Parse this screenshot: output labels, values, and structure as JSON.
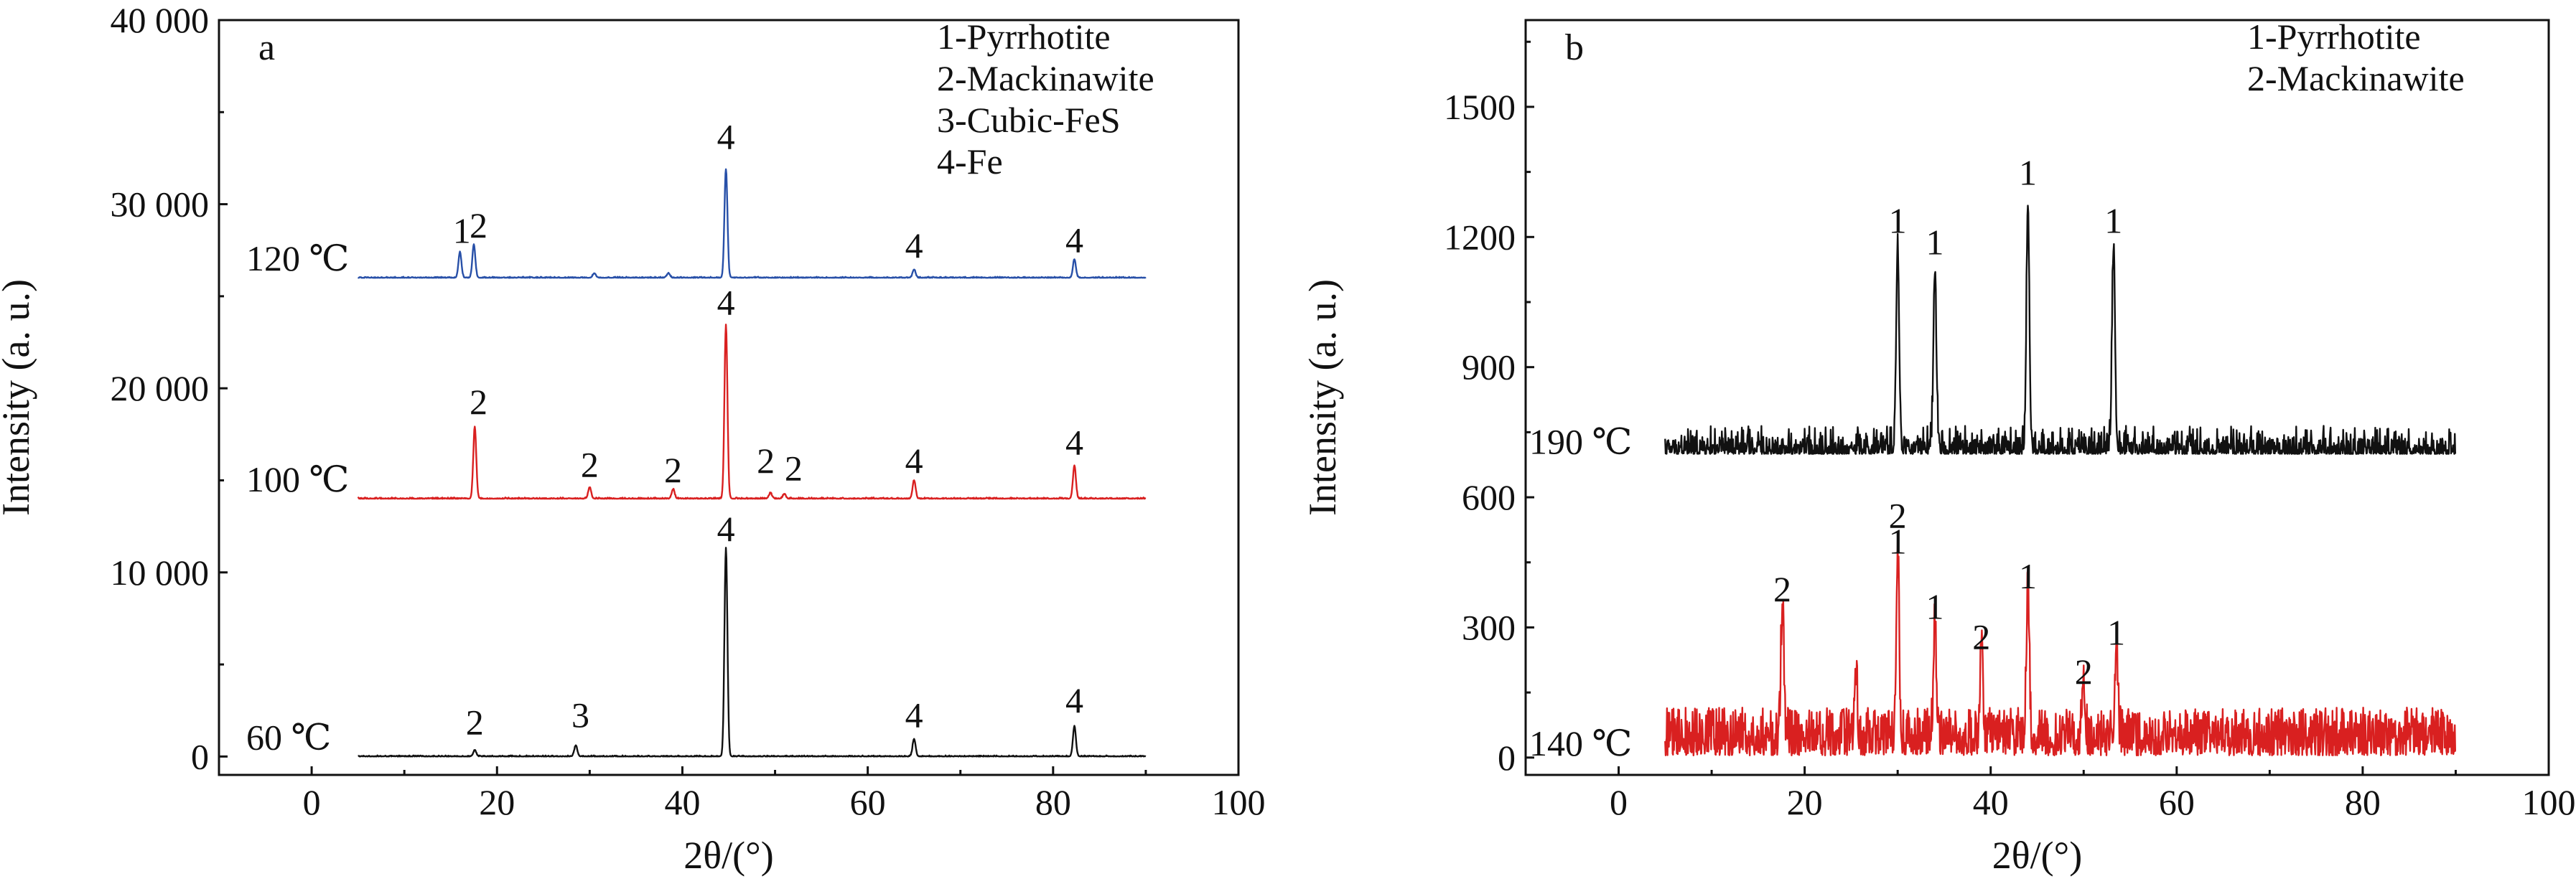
{
  "chart_data": [
    {
      "type": "line",
      "panel_label": "a",
      "xlabel": "2θ/(°)",
      "ylabel": "Intensity (a. u.)",
      "xlim": [
        -10,
        100
      ],
      "ylim": [
        -1000,
        40000
      ],
      "xticks": [
        0,
        20,
        40,
        60,
        80,
        100
      ],
      "yticks": [
        0,
        10000,
        20000,
        30000,
        40000
      ],
      "ytick_labels": [
        "0",
        "10 000",
        "20 000",
        "30 000",
        "40 000"
      ],
      "legend": [
        "1-Pyrrhotite",
        "2-Mackinawite",
        "3-Cubic-FeS",
        "4-Fe"
      ],
      "legend_position": "top-right",
      "series": [
        {
          "name": "60 ℃",
          "color": "#111111",
          "x_range": [
            5,
            90
          ],
          "baseline": 0,
          "noise": 60,
          "peaks": [
            [
              17.6,
              350
            ],
            [
              28.5,
              600
            ],
            [
              44.7,
              11300
            ],
            [
              65.0,
              950
            ],
            [
              82.3,
              1650
            ]
          ],
          "peak_labels": [
            {
              "x": 17.6,
              "y": 1200,
              "text": "2"
            },
            {
              "x": 29.0,
              "y": 1600,
              "text": "3"
            },
            {
              "x": 44.7,
              "y": 11700,
              "text": "4"
            },
            {
              "x": 65.0,
              "y": 1600,
              "text": "4"
            },
            {
              "x": 82.3,
              "y": 2400,
              "text": "4"
            }
          ]
        },
        {
          "name": "100 ℃",
          "color": "#d92020",
          "x_range": [
            5,
            90
          ],
          "baseline": 14000,
          "noise": 70,
          "peaks": [
            [
              17.6,
              3900
            ],
            [
              30.0,
              600
            ],
            [
              39.0,
              500
            ],
            [
              44.7,
              9400
            ],
            [
              49.5,
              300
            ],
            [
              51.0,
              250
            ],
            [
              65.0,
              1000
            ],
            [
              82.3,
              1800
            ]
          ],
          "peak_labels": [
            {
              "x": 18.0,
              "y": 18600,
              "text": "2"
            },
            {
              "x": 30.0,
              "y": 15200,
              "text": "2"
            },
            {
              "x": 39.0,
              "y": 14900,
              "text": "2"
            },
            {
              "x": 49.0,
              "y": 15400,
              "text": "2"
            },
            {
              "x": 52.0,
              "y": 15000,
              "text": "2"
            },
            {
              "x": 44.7,
              "y": 24000,
              "text": "4"
            },
            {
              "x": 65.0,
              "y": 15400,
              "text": "4"
            },
            {
              "x": 82.3,
              "y": 16400,
              "text": "4"
            }
          ]
        },
        {
          "name": "120 ℃",
          "color": "#2850a8",
          "x_range": [
            5,
            90
          ],
          "baseline": 26000,
          "noise": 60,
          "peaks": [
            [
              16.0,
              1400
            ],
            [
              17.5,
              1800
            ],
            [
              30.5,
              250
            ],
            [
              38.5,
              250
            ],
            [
              44.7,
              5900
            ],
            [
              65.0,
              450
            ],
            [
              82.3,
              1000
            ]
          ],
          "peak_labels": [
            {
              "x": 16.2,
              "y": 27900,
              "text": "1"
            },
            {
              "x": 18.0,
              "y": 28200,
              "text": "2"
            },
            {
              "x": 44.7,
              "y": 33000,
              "text": "4"
            },
            {
              "x": 65.0,
              "y": 27100,
              "text": "4"
            },
            {
              "x": 82.3,
              "y": 27400,
              "text": "4"
            }
          ]
        }
      ]
    },
    {
      "type": "line",
      "panel_label": "b",
      "xlabel": "2θ/(°)",
      "ylabel": "Intensity (a. u.)",
      "xlim": [
        -10,
        100
      ],
      "ylim": [
        -40,
        1700
      ],
      "xticks": [
        0,
        20,
        40,
        60,
        80,
        100
      ],
      "yticks": [
        0,
        300,
        600,
        900,
        1200,
        1500
      ],
      "ytick_labels": [
        "0",
        "300",
        "600",
        "900",
        "1200",
        "1500"
      ],
      "legend": [
        "1-Pyrrhotite",
        "2-Mackinawite"
      ],
      "legend_position": "top-right",
      "series": [
        {
          "name": "190 ℃",
          "color": "#111111",
          "x_range": [
            5,
            90
          ],
          "baseline": 700,
          "noise": 65,
          "peaks": [
            [
              30.0,
              470
            ],
            [
              34.0,
              410
            ],
            [
              44.0,
              570
            ],
            [
              53.2,
              460
            ]
          ],
          "peak_labels": [
            {
              "x": 30.0,
              "y": 1210,
              "text": "1"
            },
            {
              "x": 34.0,
              "y": 1160,
              "text": "1"
            },
            {
              "x": 44.0,
              "y": 1320,
              "text": "1"
            },
            {
              "x": 53.2,
              "y": 1210,
              "text": "1"
            }
          ]
        },
        {
          "name": "140 ℃",
          "color": "#d92020",
          "x_range": [
            5,
            90
          ],
          "baseline": 5,
          "noise": 85,
          "peaks": [
            [
              17.6,
              310
            ],
            [
              25.5,
              150
            ],
            [
              30.0,
              430
            ],
            [
              34.0,
              280
            ],
            [
              39.0,
              190
            ],
            [
              44.0,
              350
            ],
            [
              50.0,
              120
            ],
            [
              53.5,
              210
            ]
          ],
          "peak_labels": [
            {
              "x": 17.6,
              "y": 360,
              "text": "2"
            },
            {
              "x": 30.0,
              "y": 530,
              "text": "2"
            },
            {
              "x": 30.0,
              "y": 470,
              "text": "1"
            },
            {
              "x": 34.0,
              "y": 320,
              "text": "1"
            },
            {
              "x": 39.0,
              "y": 250,
              "text": "2"
            },
            {
              "x": 44.0,
              "y": 390,
              "text": "1"
            },
            {
              "x": 50.0,
              "y": 170,
              "text": "2"
            },
            {
              "x": 53.5,
              "y": 260,
              "text": "1"
            }
          ]
        }
      ]
    }
  ]
}
